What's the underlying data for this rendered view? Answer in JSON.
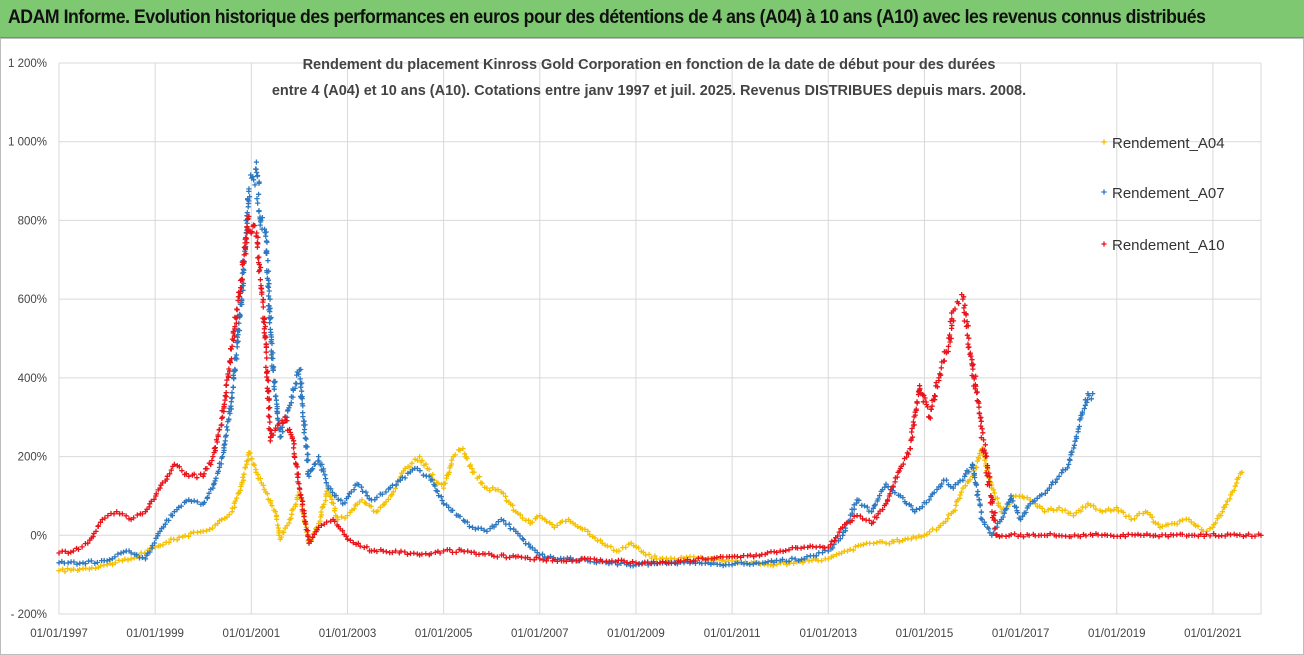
{
  "banner": {
    "text": "ADAM Informe. Evolution historique des performances en euros pour des détentions de 4 ans (A04) à 10 ans (A10) avec les revenus connus distribués"
  },
  "chart_data": {
    "type": "scatter",
    "title_line1": "Rendement du placement Kinross Gold Corporation en fonction de la date de début pour des durées",
    "title_line2": "entre 4 (A04) et 10 ans (A10). Cotations entre janv 1997 et juil. 2025. Revenus DISTRIBUES depuis mars. 2008.",
    "y_axis": {
      "min": -200,
      "max": 1200,
      "step": 200,
      "unit": "%",
      "tick_labels": [
        "- 200%",
        "0%",
        "200%",
        "400%",
        "600%",
        "800%",
        "1 000%",
        "1 200%"
      ]
    },
    "x_axis": {
      "min": 1997.0,
      "max": 2022.0,
      "tick_labels": [
        "01/01/1997",
        "01/01/1999",
        "01/01/2001",
        "01/01/2003",
        "01/01/2005",
        "01/01/2007",
        "01/01/2009",
        "01/01/2011",
        "01/01/2013",
        "01/01/2015",
        "01/01/2017",
        "01/01/2019",
        "01/01/2021"
      ],
      "tick_values": [
        1997,
        1999,
        2001,
        2003,
        2005,
        2007,
        2009,
        2011,
        2013,
        2015,
        2017,
        2019,
        2021
      ]
    },
    "grid": true,
    "legend_position": "right",
    "series": [
      {
        "name": "Rendement_A04",
        "color": "#f5c000",
        "x": [
          1997.0,
          1997.5,
          1998.0,
          1998.5,
          1999.0,
          1999.5,
          2000.0,
          2000.3,
          2000.6,
          2000.8,
          2000.95,
          2001.1,
          2001.3,
          2001.5,
          2001.6,
          2001.8,
          2002.0,
          2002.2,
          2002.4,
          2002.6,
          2002.8,
          2003.0,
          2003.3,
          2003.6,
          2003.9,
          2004.2,
          2004.5,
          2004.8,
          2005.0,
          2005.2,
          2005.4,
          2005.6,
          2005.9,
          2006.2,
          2006.5,
          2006.8,
          2007.0,
          2007.3,
          2007.6,
          2008.0,
          2008.3,
          2008.6,
          2008.9,
          2009.2,
          2009.5,
          2009.8,
          2010.2,
          2010.6,
          2011.0,
          2011.4,
          2011.8,
          2012.2,
          2012.6,
          2013.0,
          2013.4,
          2013.8,
          2014.2,
          2014.6,
          2015.0,
          2015.3,
          2015.6,
          2015.8,
          2016.0,
          2016.2,
          2016.4,
          2016.6,
          2016.9,
          2017.2,
          2017.5,
          2017.8,
          2018.1,
          2018.4,
          2018.7,
          2019.0,
          2019.3,
          2019.6,
          2019.9,
          2020.2,
          2020.5,
          2020.8,
          2021.0,
          2021.2,
          2021.4,
          2021.6
        ],
        "y": [
          -90,
          -85,
          -75,
          -60,
          -30,
          -5,
          10,
          30,
          60,
          130,
          210,
          160,
          110,
          60,
          -10,
          40,
          110,
          -20,
          30,
          120,
          40,
          50,
          90,
          60,
          100,
          170,
          200,
          140,
          120,
          200,
          220,
          160,
          120,
          110,
          60,
          30,
          50,
          20,
          40,
          10,
          -20,
          -40,
          -20,
          -50,
          -60,
          -60,
          -55,
          -60,
          -65,
          -70,
          -75,
          -70,
          -65,
          -60,
          -40,
          -20,
          -20,
          -10,
          0,
          20,
          60,
          120,
          150,
          220,
          120,
          60,
          100,
          90,
          60,
          70,
          50,
          80,
          60,
          70,
          40,
          60,
          20,
          30,
          40,
          10,
          20,
          60,
          110,
          160
        ]
      },
      {
        "name": "Rendement_A07",
        "color": "#2e78bf",
        "x": [
          1997.0,
          1997.5,
          1998.0,
          1998.4,
          1998.8,
          1999.1,
          1999.4,
          1999.7,
          2000.0,
          2000.2,
          2000.4,
          2000.6,
          2000.8,
          2000.95,
          2001.1,
          2001.2,
          2001.3,
          2001.45,
          2001.6,
          2001.8,
          2002.0,
          2002.2,
          2002.4,
          2002.6,
          2002.9,
          2003.2,
          2003.5,
          2003.8,
          2004.1,
          2004.4,
          2004.7,
          2005.0,
          2005.3,
          2005.6,
          2005.9,
          2006.2,
          2006.5,
          2006.8,
          2007.1,
          2007.5,
          2008.0,
          2008.5,
          2009.0,
          2009.5,
          2010.0,
          2010.5,
          2011.0,
          2011.5,
          2012.0,
          2012.5,
          2013.0,
          2013.3,
          2013.6,
          2013.9,
          2014.2,
          2014.5,
          2014.8,
          2015.1,
          2015.4,
          2015.6,
          2015.8,
          2016.0,
          2016.2,
          2016.4,
          2016.6,
          2016.8,
          2017.0,
          2017.2,
          2017.4,
          2017.6,
          2017.8,
          2018.0,
          2018.2,
          2018.4,
          2018.5
        ],
        "y": [
          -70,
          -70,
          -65,
          -40,
          -60,
          10,
          60,
          90,
          80,
          120,
          200,
          350,
          600,
          880,
          930,
          800,
          760,
          420,
          250,
          330,
          420,
          150,
          200,
          120,
          80,
          130,
          90,
          110,
          140,
          170,
          150,
          80,
          50,
          20,
          10,
          40,
          10,
          -30,
          -55,
          -60,
          -65,
          -70,
          -75,
          -70,
          -70,
          -70,
          -75,
          -70,
          -65,
          -60,
          -40,
          0,
          90,
          60,
          130,
          100,
          60,
          90,
          140,
          120,
          140,
          180,
          40,
          0,
          40,
          100,
          40,
          80,
          100,
          120,
          150,
          180,
          270,
          360,
          360
        ]
      },
      {
        "name": "Rendement_A10",
        "color": "#e8141b",
        "x": [
          1997.0,
          1997.3,
          1997.6,
          1997.9,
          1998.2,
          1998.5,
          1998.8,
          1999.1,
          1999.4,
          1999.7,
          2000.0,
          2000.2,
          2000.4,
          2000.6,
          2000.8,
          2000.95,
          2001.1,
          2001.25,
          2001.4,
          2001.55,
          2001.7,
          2001.85,
          2002.0,
          2002.2,
          2002.4,
          2002.7,
          2003.0,
          2003.5,
          2004.0,
          2004.5,
          2005.0,
          2005.5,
          2006.0,
          2006.5,
          2007.0,
          2007.5,
          2008.0,
          2008.5,
          2009.0,
          2009.5,
          2010.0,
          2010.5,
          2011.0,
          2011.5,
          2012.0,
          2012.5,
          2013.0,
          2013.3,
          2013.6,
          2013.9,
          2014.2,
          2014.5,
          2014.7,
          2014.9,
          2015.1,
          2015.3,
          2015.5,
          2015.6,
          2015.8,
          2016.5,
          2017.5,
          2018.5,
          2019.5,
          2020.5,
          2021.5,
          2022.0
        ],
        "y": [
          -45,
          -40,
          -20,
          40,
          60,
          40,
          60,
          120,
          180,
          150,
          150,
          200,
          300,
          480,
          650,
          810,
          760,
          580,
          250,
          280,
          300,
          250,
          120,
          -20,
          20,
          40,
          -10,
          -40,
          -40,
          -50,
          -40,
          -40,
          -50,
          -55,
          -60,
          -65,
          -60,
          -65,
          -70,
          -70,
          -65,
          -60,
          -55,
          -50,
          -40,
          -30,
          -30,
          20,
          50,
          30,
          80,
          170,
          220,
          380,
          300,
          400,
          480,
          570,
          600,
          0,
          0,
          0,
          0,
          0,
          0,
          0
        ]
      }
    ]
  }
}
